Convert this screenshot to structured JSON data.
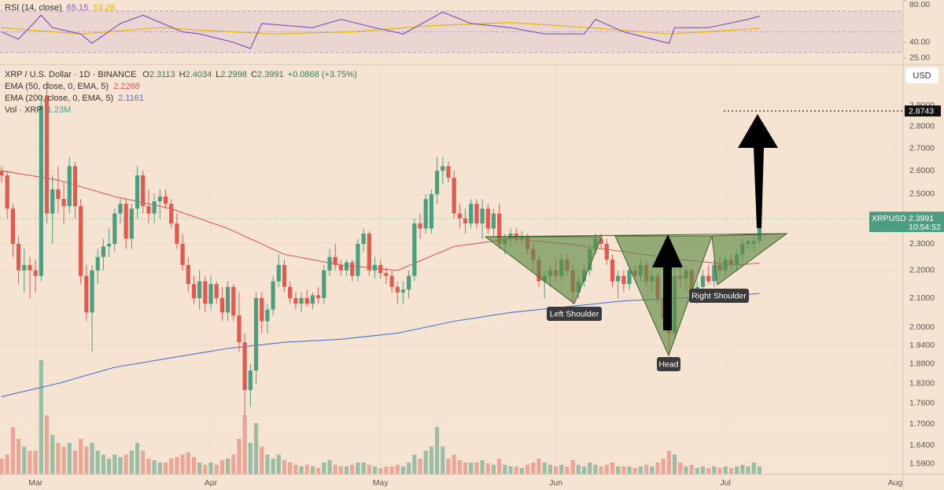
{
  "chart_data": {
    "type": "candlestick",
    "header": {
      "symbol": "XRP / U.S. Dollar · 1D · BINANCE",
      "ohlc_labels": [
        "O",
        "H",
        "L",
        "C"
      ],
      "change": "+0.0868 (+3.75%)"
    },
    "up_color": "#4c9e80",
    "down_color": "#e15a50",
    "ohlc": [
      [
        2.6,
        2.62,
        2.55,
        2.58
      ],
      [
        2.58,
        2.6,
        2.4,
        2.44
      ],
      [
        2.44,
        2.46,
        2.25,
        2.3
      ],
      [
        2.3,
        2.33,
        2.15,
        2.2
      ],
      [
        2.2,
        2.28,
        2.12,
        2.22
      ],
      [
        2.22,
        2.25,
        2.1,
        2.2
      ],
      [
        2.2,
        2.24,
        2.12,
        2.18
      ],
      [
        2.18,
        2.95,
        2.16,
        2.9
      ],
      [
        2.95,
        3.02,
        2.38,
        2.42
      ],
      [
        2.42,
        2.58,
        2.3,
        2.52
      ],
      [
        2.52,
        2.62,
        2.42,
        2.48
      ],
      [
        2.48,
        2.55,
        2.38,
        2.45
      ],
      [
        2.45,
        2.66,
        2.42,
        2.62
      ],
      [
        2.62,
        2.64,
        2.4,
        2.45
      ],
      [
        2.45,
        2.48,
        2.15,
        2.18
      ],
      [
        2.18,
        2.22,
        2.02,
        2.05
      ],
      [
        2.05,
        2.22,
        1.92,
        2.2
      ],
      [
        2.2,
        2.28,
        2.15,
        2.25
      ],
      [
        2.25,
        2.32,
        2.2,
        2.29
      ],
      [
        2.29,
        2.36,
        2.25,
        2.3
      ],
      [
        2.3,
        2.44,
        2.27,
        2.42
      ],
      [
        2.42,
        2.48,
        2.38,
        2.46
      ],
      [
        2.46,
        2.48,
        2.28,
        2.32
      ],
      [
        2.32,
        2.46,
        2.28,
        2.44
      ],
      [
        2.44,
        2.62,
        2.4,
        2.58
      ],
      [
        2.58,
        2.6,
        2.42,
        2.45
      ],
      [
        2.45,
        2.52,
        2.38,
        2.42
      ],
      [
        2.42,
        2.5,
        2.38,
        2.47
      ],
      [
        2.47,
        2.52,
        2.4,
        2.49
      ],
      [
        2.49,
        2.52,
        2.44,
        2.46
      ],
      [
        2.46,
        2.48,
        2.36,
        2.38
      ],
      [
        2.38,
        2.42,
        2.28,
        2.3
      ],
      [
        2.3,
        2.34,
        2.2,
        2.22
      ],
      [
        2.22,
        2.25,
        2.12,
        2.15
      ],
      [
        2.15,
        2.18,
        2.08,
        2.1
      ],
      [
        2.1,
        2.2,
        2.06,
        2.16
      ],
      [
        2.16,
        2.18,
        2.05,
        2.08
      ],
      [
        2.08,
        2.18,
        2.06,
        2.15
      ],
      [
        2.15,
        2.16,
        2.08,
        2.1
      ],
      [
        2.1,
        2.14,
        2.02,
        2.05
      ],
      [
        2.05,
        2.16,
        2.02,
        2.14
      ],
      [
        2.14,
        2.15,
        2.02,
        2.04
      ],
      [
        2.04,
        2.12,
        1.92,
        1.95
      ],
      [
        1.95,
        1.98,
        1.72,
        1.8
      ],
      [
        1.8,
        1.88,
        1.75,
        1.86
      ],
      [
        1.86,
        2.12,
        1.82,
        2.1
      ],
      [
        2.1,
        2.12,
        1.98,
        2.02
      ],
      [
        2.02,
        2.08,
        1.98,
        2.06
      ],
      [
        2.06,
        2.18,
        2.04,
        2.16
      ],
      [
        2.16,
        2.26,
        2.14,
        2.22
      ],
      [
        2.22,
        2.24,
        2.12,
        2.14
      ],
      [
        2.14,
        2.16,
        2.08,
        2.1
      ],
      [
        2.1,
        2.12,
        2.06,
        2.08
      ],
      [
        2.08,
        2.12,
        2.05,
        2.1
      ],
      [
        2.1,
        2.13,
        2.07,
        2.08
      ],
      [
        2.08,
        2.12,
        2.06,
        2.11
      ],
      [
        2.11,
        2.14,
        2.08,
        2.1
      ],
      [
        2.1,
        2.22,
        2.08,
        2.2
      ],
      [
        2.2,
        2.28,
        2.18,
        2.25
      ],
      [
        2.25,
        2.3,
        2.2,
        2.22
      ],
      [
        2.22,
        2.24,
        2.18,
        2.2
      ],
      [
        2.2,
        2.24,
        2.18,
        2.23
      ],
      [
        2.23,
        2.24,
        2.16,
        2.18
      ],
      [
        2.18,
        2.32,
        2.16,
        2.3
      ],
      [
        2.3,
        2.36,
        2.27,
        2.34
      ],
      [
        2.34,
        2.35,
        2.18,
        2.2
      ],
      [
        2.2,
        2.25,
        2.17,
        2.22
      ],
      [
        2.22,
        2.24,
        2.17,
        2.19
      ],
      [
        2.19,
        2.21,
        2.15,
        2.18
      ],
      [
        2.18,
        2.2,
        2.12,
        2.14
      ],
      [
        2.14,
        2.16,
        2.08,
        2.12
      ],
      [
        2.12,
        2.16,
        2.08,
        2.13
      ],
      [
        2.13,
        2.2,
        2.1,
        2.18
      ],
      [
        2.18,
        2.4,
        2.16,
        2.38
      ],
      [
        2.38,
        2.42,
        2.32,
        2.36
      ],
      [
        2.36,
        2.5,
        2.34,
        2.48
      ],
      [
        2.36,
        2.52,
        2.34,
        2.5
      ],
      [
        2.5,
        2.66,
        2.46,
        2.6
      ],
      [
        2.6,
        2.66,
        2.54,
        2.62
      ],
      [
        2.62,
        2.64,
        2.55,
        2.57
      ],
      [
        2.57,
        2.6,
        2.4,
        2.42
      ],
      [
        2.42,
        2.46,
        2.36,
        2.4
      ],
      [
        2.4,
        2.44,
        2.34,
        2.38
      ],
      [
        2.38,
        2.48,
        2.36,
        2.46
      ],
      [
        2.46,
        2.48,
        2.36,
        2.38
      ],
      [
        2.38,
        2.48,
        2.32,
        2.44
      ],
      [
        2.44,
        2.46,
        2.34,
        2.36
      ],
      [
        2.36,
        2.44,
        2.33,
        2.42
      ],
      [
        2.42,
        2.46,
        2.28,
        2.3
      ],
      [
        2.3,
        2.34,
        2.26,
        2.32
      ],
      [
        2.32,
        2.36,
        2.29,
        2.34
      ],
      [
        2.34,
        2.36,
        2.3,
        2.32
      ],
      [
        2.32,
        2.35,
        2.3,
        2.33
      ],
      [
        2.33,
        2.34,
        2.26,
        2.28
      ],
      [
        2.28,
        2.3,
        2.2,
        2.24
      ],
      [
        2.24,
        2.26,
        2.14,
        2.16
      ],
      [
        2.16,
        2.2,
        2.1,
        2.18
      ],
      [
        2.18,
        2.22,
        2.14,
        2.2
      ],
      [
        2.2,
        2.24,
        2.16,
        2.18
      ],
      [
        2.18,
        2.26,
        2.16,
        2.24
      ],
      [
        2.24,
        2.26,
        2.18,
        2.2
      ],
      [
        2.2,
        2.22,
        2.08,
        2.12
      ],
      [
        2.12,
        2.18,
        2.1,
        2.16
      ],
      [
        2.16,
        2.22,
        2.14,
        2.2
      ],
      [
        2.2,
        2.3,
        2.18,
        2.28
      ],
      [
        2.28,
        2.34,
        2.26,
        2.32
      ],
      [
        2.32,
        2.34,
        2.28,
        2.3
      ],
      [
        2.3,
        2.32,
        2.22,
        2.24
      ],
      [
        2.24,
        2.26,
        2.14,
        2.16
      ],
      [
        2.16,
        2.2,
        2.1,
        2.18
      ],
      [
        2.18,
        2.2,
        2.12,
        2.15
      ],
      [
        2.15,
        2.22,
        2.13,
        2.2
      ],
      [
        2.2,
        2.22,
        2.16,
        2.18
      ],
      [
        2.18,
        2.24,
        2.16,
        2.22
      ],
      [
        2.22,
        2.23,
        2.14,
        2.16
      ],
      [
        2.16,
        2.2,
        2.12,
        2.18
      ],
      [
        2.18,
        2.19,
        2.08,
        2.1
      ],
      [
        2.1,
        2.12,
        2.0,
        2.03
      ],
      [
        2.03,
        2.06,
        1.91,
        1.98
      ],
      [
        1.98,
        2.22,
        1.96,
        2.18
      ],
      [
        2.18,
        2.22,
        2.14,
        2.17
      ],
      [
        2.17,
        2.22,
        2.12,
        2.2
      ],
      [
        2.2,
        2.21,
        2.1,
        2.12
      ],
      [
        2.12,
        2.16,
        2.08,
        2.14
      ],
      [
        2.14,
        2.2,
        2.12,
        2.18
      ],
      [
        2.18,
        2.22,
        2.15,
        2.16
      ],
      [
        2.16,
        2.24,
        2.14,
        2.22
      ],
      [
        2.22,
        2.25,
        2.18,
        2.2
      ],
      [
        2.2,
        2.26,
        2.18,
        2.24
      ],
      [
        2.24,
        2.26,
        2.2,
        2.22
      ],
      [
        2.22,
        2.28,
        2.2,
        2.26
      ],
      [
        2.26,
        2.32,
        2.24,
        2.3
      ],
      [
        2.3,
        2.32,
        2.28,
        2.31
      ],
      [
        2.3,
        2.34,
        2.27,
        2.31
      ],
      [
        2.3113,
        2.4034,
        2.2998,
        2.3991
      ]
    ],
    "xlim": [
      -0.28,
      159.4
    ],
    "xticks": [
      {
        "value": 6,
        "label": "Mar"
      },
      {
        "value": 37,
        "label": "Apr"
      },
      {
        "value": 67,
        "label": "May"
      },
      {
        "value": 98,
        "label": "Jun"
      },
      {
        "value": 128,
        "label": "Jul"
      },
      {
        "value": 158,
        "label": "Aug"
      }
    ],
    "ylim": [
      1.569,
      3.095
    ],
    "log_y": true,
    "grid": true,
    "yticks": [
      {
        "value": 1.59,
        "label": "1.5900"
      },
      {
        "value": 1.64,
        "label": "1.6400"
      },
      {
        "value": 1.7,
        "label": "1.7000"
      },
      {
        "value": 1.76,
        "label": "1.7600"
      },
      {
        "value": 1.82,
        "label": "1.8200"
      },
      {
        "value": 1.88,
        "label": "1.8800"
      },
      {
        "value": 1.94,
        "label": "1.9400"
      },
      {
        "value": 2.0,
        "label": "2.0000"
      },
      {
        "value": 2.1,
        "label": "2.1000"
      },
      {
        "value": 2.2,
        "label": "2.2000"
      },
      {
        "value": 2.3,
        "label": "2.3000"
      },
      {
        "value": 2.5,
        "label": "2.5000"
      },
      {
        "value": 2.6,
        "label": "2.6000"
      },
      {
        "value": 2.7,
        "label": "2.7000"
      },
      {
        "value": 2.8,
        "label": "2.8000"
      },
      {
        "value": 2.9,
        "label": "2.9000"
      }
    ],
    "axis_unit": "USD",
    "last_price": {
      "symbol": "XRPUSD",
      "time": "10:54:52"
    },
    "target": 2.8743,
    "ema": [
      {
        "name": "EMA (50, close, 0, EMA, 5)",
        "color": "#e05a5a",
        "x": [
          0,
          10,
          20,
          30,
          40,
          50,
          60,
          70,
          80,
          90,
          100,
          110,
          120,
          130,
          134
        ],
        "values": [
          2.6,
          2.56,
          2.49,
          2.44,
          2.36,
          2.26,
          2.22,
          2.2,
          2.29,
          2.32,
          2.3,
          2.27,
          2.24,
          2.22,
          2.2268
        ]
      },
      {
        "name": "EMA (200, close, 0, EMA, 5)",
        "color": "#4a6fd8",
        "x": [
          0,
          10,
          20,
          30,
          40,
          50,
          60,
          70,
          80,
          90,
          100,
          110,
          120,
          130,
          134
        ],
        "values": [
          1.78,
          1.82,
          1.87,
          1.9,
          1.93,
          1.95,
          1.96,
          1.98,
          2.02,
          2.05,
          2.07,
          2.09,
          2.1,
          2.11,
          2.1161
        ]
      }
    ],
    "volume": {
      "name": "Vol · XRP",
      "label": "1.23M",
      "vlim": [
        0,
        150
      ],
      "values": [
        20,
        25,
        60,
        45,
        35,
        30,
        30,
        145,
        75,
        50,
        40,
        35,
        40,
        30,
        45,
        35,
        40,
        30,
        25,
        20,
        25,
        22,
        25,
        30,
        40,
        30,
        20,
        18,
        15,
        15,
        20,
        22,
        25,
        28,
        22,
        15,
        12,
        15,
        12,
        18,
        20,
        25,
        45,
        75,
        40,
        65,
        35,
        25,
        20,
        25,
        18,
        15,
        12,
        10,
        12,
        10,
        8,
        15,
        18,
        12,
        10,
        10,
        12,
        15,
        15,
        12,
        10,
        8,
        10,
        10,
        12,
        10,
        15,
        25,
        20,
        30,
        35,
        60,
        35,
        20,
        25,
        18,
        15,
        15,
        15,
        18,
        14,
        12,
        20,
        12,
        10,
        10,
        8,
        12,
        15,
        20,
        15,
        12,
        10,
        12,
        10,
        18,
        12,
        10,
        15,
        12,
        10,
        12,
        15,
        10,
        10,
        10,
        8,
        10,
        12,
        10,
        15,
        20,
        30,
        25,
        15,
        10,
        12,
        8,
        10,
        8,
        10,
        8,
        10,
        8,
        10,
        12,
        10,
        15,
        10
      ]
    },
    "rsi": {
      "name": "RSI (14, close)",
      "color": "#7e57c2",
      "x": [
        0,
        3,
        7,
        9,
        14,
        16,
        21,
        25,
        32,
        35,
        41,
        44,
        46,
        55,
        60,
        66,
        71,
        78,
        83,
        90,
        96,
        103,
        105,
        110,
        118,
        119,
        125,
        132,
        134
      ],
      "values": [
        50,
        43,
        66,
        54,
        48,
        39,
        58,
        66,
        50,
        48,
        40,
        34,
        58,
        54,
        62,
        54,
        48,
        69,
        58,
        54,
        48,
        48,
        62,
        50,
        39,
        54,
        54,
        62,
        65.15
      ],
      "ma": {
        "color": "#e8b700",
        "x": [
          0,
          14,
          28,
          41,
          48,
          62,
          76,
          90,
          104,
          118,
          134
        ],
        "values": [
          54,
          48,
          54,
          50,
          48,
          50,
          56,
          59,
          54,
          48,
          53.28
        ]
      },
      "ylim": [
        18.7,
        80.6
      ],
      "bands": [
        70,
        50,
        30
      ],
      "yticks": [
        {
          "value": 80,
          "label": "80.00"
        },
        {
          "value": 40,
          "label": "40.00"
        },
        {
          "value": 25,
          "label": "25.00"
        }
      ]
    },
    "annotations": [
      "Left Shoulder",
      "Head",
      "Right Shoulder"
    ]
  }
}
